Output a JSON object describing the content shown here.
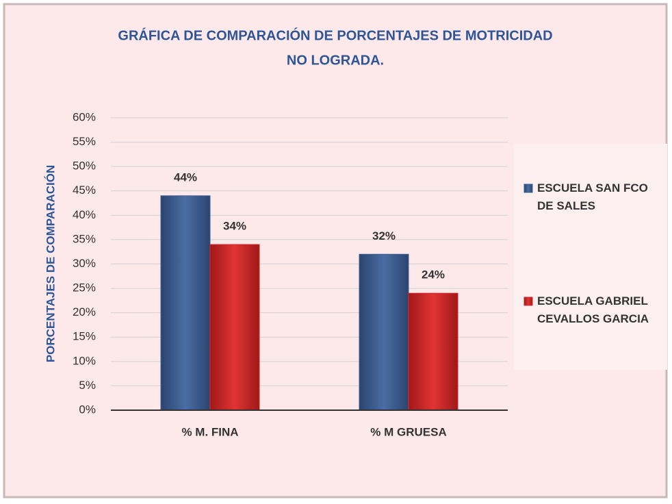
{
  "chart_data": {
    "type": "bar",
    "title": [
      "GRÁFICA DE COMPARACIÓN DE PORCENTAJES DE MOTRICIDAD",
      "NO LOGRADA."
    ],
    "y_label": "PORCENTAJES DE COMPARACIÓN",
    "categories": [
      "% M. FINA",
      "% M GRUESA"
    ],
    "series": [
      {
        "name": "ESCUELA SAN FCO DE SALES",
        "color": "#3f5f92",
        "values": [
          44,
          32
        ],
        "value_labels": [
          "44%",
          "32%"
        ]
      },
      {
        "name": "ESCUELA GABRIEL CEVALLOS GARCIA",
        "color": "#d42a2a",
        "values": [
          34,
          24
        ],
        "value_labels": [
          "34%",
          "24%"
        ]
      }
    ],
    "ylim": [
      0,
      60
    ],
    "yticks": [
      {
        "value": 0,
        "label": "0%"
      },
      {
        "value": 5,
        "label": "5%"
      },
      {
        "value": 10,
        "label": "10%"
      },
      {
        "value": 15,
        "label": "15%"
      },
      {
        "value": 20,
        "label": "20%"
      },
      {
        "value": 25,
        "label": "25%"
      },
      {
        "value": 30,
        "label": "30%"
      },
      {
        "value": 35,
        "label": "35%"
      },
      {
        "value": 40,
        "label": "40%"
      },
      {
        "value": 45,
        "label": "45%"
      },
      {
        "value": 50,
        "label": "50%"
      },
      {
        "value": 55,
        "label": "55%"
      },
      {
        "value": 60,
        "label": "60%"
      }
    ],
    "grid": true,
    "legend": "right"
  }
}
